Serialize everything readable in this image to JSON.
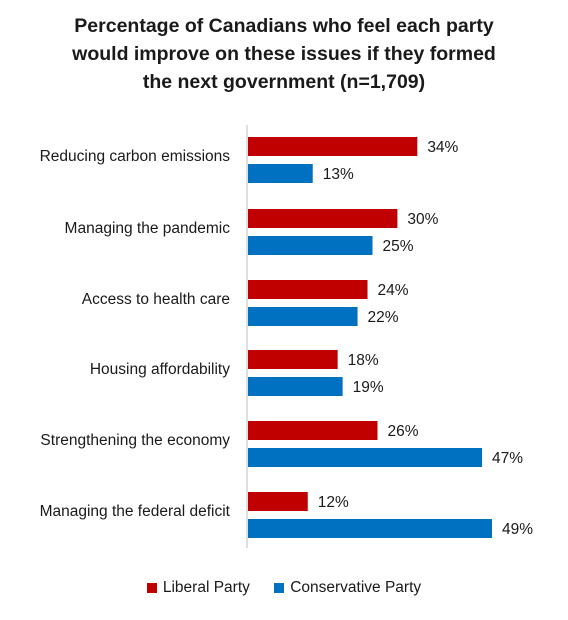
{
  "chart_data": {
    "type": "bar",
    "orientation": "horizontal",
    "title_lines": [
      "Percentage of Canadians who feel each party",
      "would improve on these issues if they formed",
      "the next government (n=1,709)"
    ],
    "categories": [
      "Reducing carbon emissions",
      "Managing the pandemic",
      "Access to health care",
      "Housing affordability",
      "Strengthening the economy",
      "Managing the federal deficit"
    ],
    "series": [
      {
        "name": "Liberal Party",
        "color": "#c00000",
        "values": [
          34,
          30,
          24,
          18,
          26,
          12
        ],
        "labels": [
          "34%",
          "30%",
          "24%",
          "18%",
          "26%",
          "12%"
        ]
      },
      {
        "name": "Conservative Party",
        "color": "#0070c0",
        "values": [
          13,
          25,
          22,
          19,
          47,
          49
        ],
        "labels": [
          "13%",
          "25%",
          "22%",
          "19%",
          "47%",
          "49%"
        ]
      }
    ],
    "value_unit": "%",
    "legend_position": "bottom",
    "grid": false
  }
}
